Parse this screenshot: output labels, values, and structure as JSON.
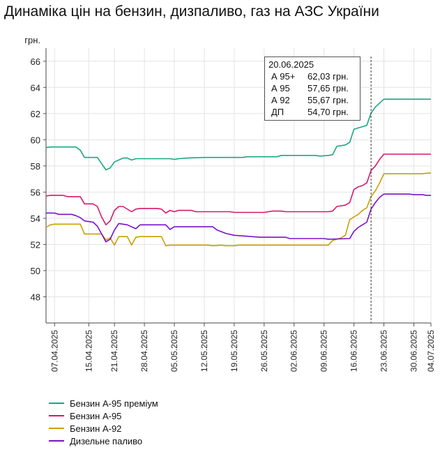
{
  "title": "Динаміка цін на бензин, дизпаливо, газ на АЗС України",
  "chart_data": {
    "type": "line",
    "ylabel": "грн.",
    "ylim": [
      46,
      67
    ],
    "yticks": [
      48,
      50,
      52,
      54,
      56,
      58,
      60,
      62,
      64,
      66
    ],
    "xlim": [
      "2025-04-05",
      "2025-07-04"
    ],
    "xticks": [
      "07.04.2025",
      "15.04.2025",
      "21.04.2025",
      "28.04.2025",
      "05.05.2025",
      "12.05.2025",
      "19.05.2025",
      "26.05.2025",
      "02.06.2025",
      "09.06.2025",
      "16.06.2025",
      "23.06.2025",
      "30.06.2025",
      "04.07.2025"
    ],
    "grid": true,
    "legend_position": "bottom-left",
    "cursor_date": "2025-06-20",
    "series": [
      {
        "name": "Бензин А-95 преміум",
        "color": "#1aa882",
        "points": [
          [
            "2025-04-05",
            59.4
          ],
          [
            "2025-04-06",
            59.45
          ],
          [
            "2025-04-12",
            59.45
          ],
          [
            "2025-04-13",
            59.2
          ],
          [
            "2025-04-14",
            58.65
          ],
          [
            "2025-04-17",
            58.65
          ],
          [
            "2025-04-19",
            57.7
          ],
          [
            "2025-04-20",
            57.85
          ],
          [
            "2025-04-21",
            58.3
          ],
          [
            "2025-04-23",
            58.6
          ],
          [
            "2025-04-24",
            58.6
          ],
          [
            "2025-04-25",
            58.45
          ],
          [
            "2025-04-26",
            58.55
          ],
          [
            "2025-05-04",
            58.55
          ],
          [
            "2025-05-05",
            58.5
          ],
          [
            "2025-05-06",
            58.55
          ],
          [
            "2025-05-08",
            58.6
          ],
          [
            "2025-05-12",
            58.65
          ],
          [
            "2025-05-21",
            58.65
          ],
          [
            "2025-05-22",
            58.7
          ],
          [
            "2025-05-29",
            58.7
          ],
          [
            "2025-05-30",
            58.8
          ],
          [
            "2025-06-07",
            58.8
          ],
          [
            "2025-06-08",
            58.75
          ],
          [
            "2025-06-10",
            58.8
          ],
          [
            "2025-06-11",
            58.85
          ],
          [
            "2025-06-12",
            59.5
          ],
          [
            "2025-06-13",
            59.55
          ],
          [
            "2025-06-14",
            59.6
          ],
          [
            "2025-06-15",
            59.8
          ],
          [
            "2025-06-16",
            60.8
          ],
          [
            "2025-06-17",
            60.9
          ],
          [
            "2025-06-18",
            61.0
          ],
          [
            "2025-06-19",
            61.1
          ],
          [
            "2025-06-20",
            62.03
          ],
          [
            "2025-06-21",
            62.5
          ],
          [
            "2025-06-22",
            62.8
          ],
          [
            "2025-06-23",
            63.1
          ],
          [
            "2025-07-04",
            63.1
          ]
        ]
      },
      {
        "name": "Бензин А-95",
        "color": "#d6186a",
        "points": [
          [
            "2025-04-05",
            55.7
          ],
          [
            "2025-04-06",
            55.75
          ],
          [
            "2025-04-09",
            55.75
          ],
          [
            "2025-04-10",
            55.65
          ],
          [
            "2025-04-13",
            55.65
          ],
          [
            "2025-04-14",
            55.1
          ],
          [
            "2025-04-16",
            55.1
          ],
          [
            "2025-04-17",
            54.9
          ],
          [
            "2025-04-18",
            54.1
          ],
          [
            "2025-04-19",
            53.5
          ],
          [
            "2025-04-20",
            53.8
          ],
          [
            "2025-04-21",
            54.6
          ],
          [
            "2025-04-22",
            54.9
          ],
          [
            "2025-04-23",
            54.9
          ],
          [
            "2025-04-25",
            54.5
          ],
          [
            "2025-04-26",
            54.7
          ],
          [
            "2025-04-27",
            54.75
          ],
          [
            "2025-05-01",
            54.75
          ],
          [
            "2025-05-02",
            54.7
          ],
          [
            "2025-05-03",
            54.4
          ],
          [
            "2025-05-04",
            54.6
          ],
          [
            "2025-05-05",
            54.5
          ],
          [
            "2025-05-06",
            54.6
          ],
          [
            "2025-05-09",
            54.6
          ],
          [
            "2025-05-10",
            54.5
          ],
          [
            "2025-05-18",
            54.5
          ],
          [
            "2025-05-19",
            54.45
          ],
          [
            "2025-05-26",
            54.45
          ],
          [
            "2025-05-27",
            54.5
          ],
          [
            "2025-05-28",
            54.55
          ],
          [
            "2025-05-30",
            54.55
          ],
          [
            "2025-05-31",
            54.5
          ],
          [
            "2025-06-10",
            54.5
          ],
          [
            "2025-06-11",
            54.55
          ],
          [
            "2025-06-12",
            54.9
          ],
          [
            "2025-06-14",
            55.0
          ],
          [
            "2025-06-15",
            55.2
          ],
          [
            "2025-06-16",
            56.2
          ],
          [
            "2025-06-17",
            56.4
          ],
          [
            "2025-06-18",
            56.5
          ],
          [
            "2025-06-19",
            56.7
          ],
          [
            "2025-06-20",
            57.65
          ],
          [
            "2025-06-21",
            58.0
          ],
          [
            "2025-06-22",
            58.5
          ],
          [
            "2025-06-23",
            58.9
          ],
          [
            "2025-07-04",
            58.9
          ]
        ]
      },
      {
        "name": "Бензин А-92",
        "color": "#c8a000",
        "points": [
          [
            "2025-04-05",
            53.3
          ],
          [
            "2025-04-06",
            53.5
          ],
          [
            "2025-04-07",
            53.55
          ],
          [
            "2025-04-13",
            53.55
          ],
          [
            "2025-04-14",
            52.8
          ],
          [
            "2025-04-18",
            52.8
          ],
          [
            "2025-04-19",
            52.35
          ],
          [
            "2025-04-20",
            52.5
          ],
          [
            "2025-04-21",
            51.95
          ],
          [
            "2025-04-22",
            52.6
          ],
          [
            "2025-04-24",
            52.6
          ],
          [
            "2025-04-25",
            51.95
          ],
          [
            "2025-04-26",
            52.55
          ],
          [
            "2025-04-27",
            52.6
          ],
          [
            "2025-05-02",
            52.6
          ],
          [
            "2025-05-03",
            51.9
          ],
          [
            "2025-05-04",
            51.95
          ],
          [
            "2025-05-13",
            51.95
          ],
          [
            "2025-05-14",
            51.9
          ],
          [
            "2025-05-16",
            51.95
          ],
          [
            "2025-05-17",
            51.9
          ],
          [
            "2025-05-19",
            51.9
          ],
          [
            "2025-05-20",
            51.95
          ],
          [
            "2025-06-10",
            51.95
          ],
          [
            "2025-06-11",
            52.3
          ],
          [
            "2025-06-13",
            52.5
          ],
          [
            "2025-06-14",
            52.7
          ],
          [
            "2025-06-15",
            53.9
          ],
          [
            "2025-06-16",
            54.1
          ],
          [
            "2025-06-17",
            54.3
          ],
          [
            "2025-06-18",
            54.6
          ],
          [
            "2025-06-19",
            54.8
          ],
          [
            "2025-06-20",
            55.67
          ],
          [
            "2025-06-21",
            56.1
          ],
          [
            "2025-06-22",
            56.7
          ],
          [
            "2025-06-23",
            57.4
          ],
          [
            "2025-07-02",
            57.4
          ],
          [
            "2025-07-03",
            57.45
          ],
          [
            "2025-07-04",
            57.45
          ]
        ]
      },
      {
        "name": "Дизельне паливо",
        "color": "#7a12c8",
        "points": [
          [
            "2025-04-05",
            54.4
          ],
          [
            "2025-04-07",
            54.4
          ],
          [
            "2025-04-08",
            54.3
          ],
          [
            "2025-04-11",
            54.3
          ],
          [
            "2025-04-12",
            54.2
          ],
          [
            "2025-04-13",
            54.05
          ],
          [
            "2025-04-14",
            53.8
          ],
          [
            "2025-04-16",
            53.7
          ],
          [
            "2025-04-17",
            53.4
          ],
          [
            "2025-04-18",
            52.8
          ],
          [
            "2025-04-19",
            52.2
          ],
          [
            "2025-04-20",
            52.4
          ],
          [
            "2025-04-21",
            53.1
          ],
          [
            "2025-04-22",
            53.6
          ],
          [
            "2025-04-24",
            53.5
          ],
          [
            "2025-04-26",
            53.2
          ],
          [
            "2025-04-27",
            53.5
          ],
          [
            "2025-05-03",
            53.5
          ],
          [
            "2025-05-04",
            53.15
          ],
          [
            "2025-05-05",
            53.35
          ],
          [
            "2025-05-14",
            53.35
          ],
          [
            "2025-05-15",
            53.1
          ],
          [
            "2025-05-17",
            52.85
          ],
          [
            "2025-05-19",
            52.7
          ],
          [
            "2025-05-21",
            52.65
          ],
          [
            "2025-05-25",
            52.55
          ],
          [
            "2025-05-31",
            52.55
          ],
          [
            "2025-06-01",
            52.45
          ],
          [
            "2025-06-09",
            52.45
          ],
          [
            "2025-06-10",
            52.4
          ],
          [
            "2025-06-15",
            52.45
          ],
          [
            "2025-06-16",
            53.0
          ],
          [
            "2025-06-17",
            53.3
          ],
          [
            "2025-06-18",
            53.5
          ],
          [
            "2025-06-19",
            53.7
          ],
          [
            "2025-06-20",
            54.7
          ],
          [
            "2025-06-21",
            55.2
          ],
          [
            "2025-06-22",
            55.6
          ],
          [
            "2025-06-23",
            55.85
          ],
          [
            "2025-06-29",
            55.85
          ],
          [
            "2025-06-30",
            55.8
          ],
          [
            "2025-07-02",
            55.8
          ],
          [
            "2025-07-03",
            55.75
          ],
          [
            "2025-07-04",
            55.75
          ]
        ]
      }
    ]
  },
  "tooltip": {
    "date": "20.06.2025",
    "rows": [
      {
        "label": "А 95+",
        "value": "62,03 грн."
      },
      {
        "label": "А 95",
        "value": "57,65 грн."
      },
      {
        "label": "А 92",
        "value": "55,67 грн."
      },
      {
        "label": "ДП",
        "value": "54,70 грн."
      }
    ]
  }
}
